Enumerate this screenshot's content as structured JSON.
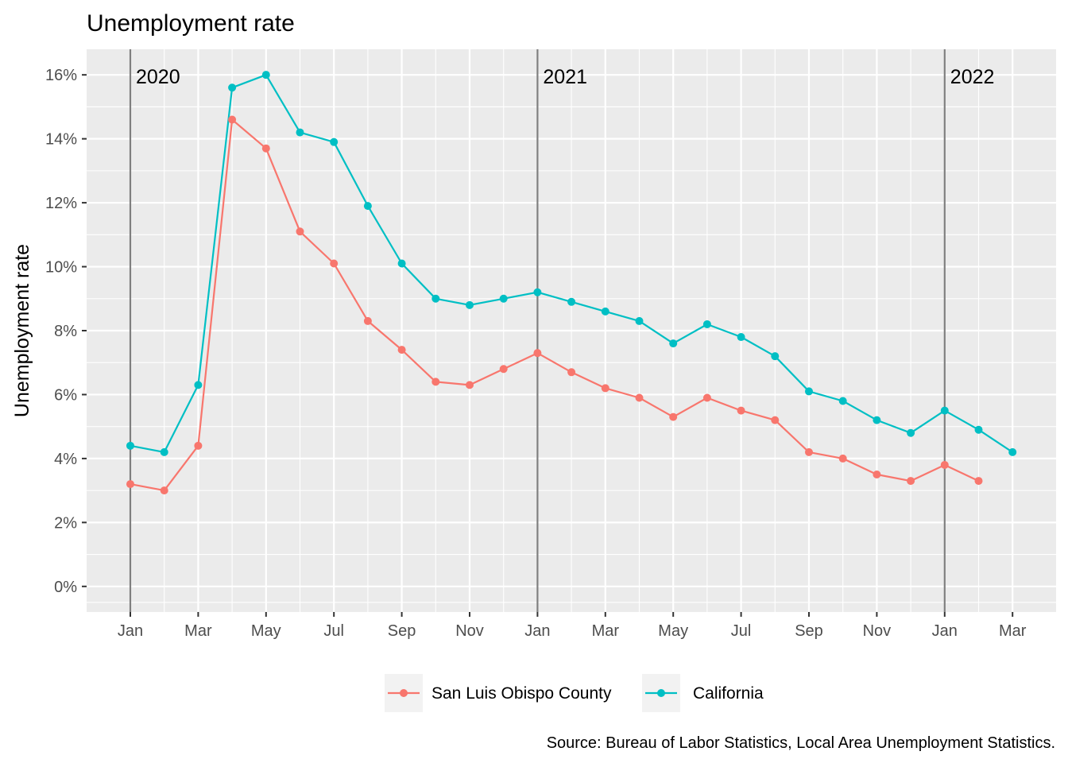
{
  "chart_data": {
    "type": "line",
    "title": "Unemployment rate",
    "xlabel": "",
    "ylabel": "Unemployment rate",
    "caption": "Source: Bureau of Labor Statistics, Local Area Unemployment Statistics.",
    "x": [
      "2020-01",
      "2020-02",
      "2020-03",
      "2020-04",
      "2020-05",
      "2020-06",
      "2020-07",
      "2020-08",
      "2020-09",
      "2020-10",
      "2020-11",
      "2020-12",
      "2021-01",
      "2021-02",
      "2021-03",
      "2021-04",
      "2021-05",
      "2021-06",
      "2021-07",
      "2021-08",
      "2021-09",
      "2021-10",
      "2021-11",
      "2021-12",
      "2022-01",
      "2022-02",
      "2022-03"
    ],
    "x_ticks": [
      "Jan",
      "Mar",
      "May",
      "Jul",
      "Sep",
      "Nov",
      "Jan",
      "Mar",
      "May",
      "Jul",
      "Sep",
      "Nov",
      "Jan",
      "Mar"
    ],
    "year_markers": [
      "2020",
      "2021",
      "2022"
    ],
    "y_ticks": [
      "0%",
      "2%",
      "4%",
      "6%",
      "8%",
      "10%",
      "12%",
      "14%",
      "16%"
    ],
    "ylim": [
      -0.8,
      16.8
    ],
    "grid": true,
    "legend_position": "bottom",
    "series": [
      {
        "name": "San Luis Obispo County",
        "color": "#F8766D",
        "values": [
          3.2,
          3.0,
          4.4,
          14.6,
          13.7,
          11.1,
          10.1,
          8.3,
          7.4,
          6.4,
          6.3,
          6.8,
          7.3,
          6.7,
          6.2,
          5.9,
          5.3,
          5.9,
          5.5,
          5.2,
          4.2,
          4.0,
          3.5,
          3.3,
          3.8,
          3.3,
          null
        ]
      },
      {
        "name": "California",
        "color": "#00BFC4",
        "values": [
          4.4,
          4.2,
          6.3,
          15.6,
          16.0,
          14.2,
          13.9,
          11.9,
          10.1,
          9.0,
          8.8,
          9.0,
          9.2,
          8.9,
          8.6,
          8.3,
          7.6,
          8.2,
          7.8,
          7.2,
          6.1,
          5.8,
          5.2,
          4.8,
          5.5,
          4.9,
          4.2
        ]
      }
    ]
  }
}
